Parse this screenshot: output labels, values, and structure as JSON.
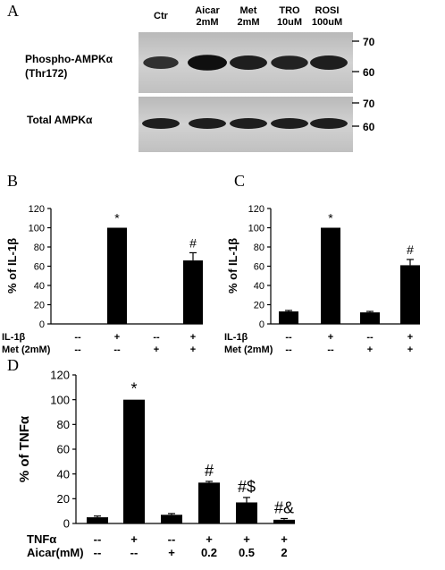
{
  "panel_a": {
    "letter": "A",
    "lanes": [
      "Ctr",
      "Aicar\n2mM",
      "Met\n2mM",
      "TRO\n10uM",
      "ROSI\n100uM"
    ],
    "blots": [
      {
        "label": "Phospho-AMPKα\n(Thr172)",
        "markers": [
          "70",
          "60"
        ],
        "band_intensity": [
          0.55,
          1.0,
          0.8,
          0.75,
          0.8
        ]
      },
      {
        "label": "Total AMPKα",
        "markers": [
          "70",
          "60"
        ],
        "band_intensity": [
          0.8,
          0.8,
          0.8,
          0.8,
          0.8
        ]
      }
    ]
  },
  "chart_data": [
    {
      "panel": "B",
      "type": "bar",
      "ylabel": "% of IL-1β",
      "ylim": [
        0,
        120
      ],
      "yticks": [
        "0",
        "20",
        "40",
        "60",
        "80",
        "100",
        "120"
      ],
      "values": [
        0,
        100,
        0,
        66
      ],
      "errors": [
        0,
        0,
        0,
        8
      ],
      "annotations": [
        "",
        "*",
        "",
        "#"
      ],
      "conditions": [
        {
          "label": "IL-1β",
          "values": [
            "--",
            "+",
            "--",
            "+"
          ]
        },
        {
          "label": "Met (2mM)",
          "values": [
            "--",
            "--",
            "+",
            "+"
          ]
        }
      ]
    },
    {
      "panel": "C",
      "type": "bar",
      "ylabel": "% of IL-1β",
      "ylim": [
        0,
        120
      ],
      "yticks": [
        "0",
        "20",
        "40",
        "60",
        "80",
        "100",
        "120"
      ],
      "values": [
        13,
        100,
        12,
        61
      ],
      "errors": [
        1,
        0,
        1,
        6
      ],
      "annotations": [
        "",
        "*",
        "",
        "#"
      ],
      "conditions": [
        {
          "label": "IL-1β",
          "values": [
            "--",
            "+",
            "--",
            "+"
          ]
        },
        {
          "label": "Met (2mM)",
          "values": [
            "--",
            "--",
            "+",
            "+"
          ]
        }
      ]
    },
    {
      "panel": "D",
      "type": "bar",
      "ylabel": "% of TNFα",
      "ylim": [
        0,
        120
      ],
      "yticks": [
        "0",
        "20",
        "40",
        "60",
        "80",
        "100",
        "120"
      ],
      "values": [
        5,
        100,
        7,
        33,
        17,
        3
      ],
      "errors": [
        1,
        0,
        1,
        1,
        4,
        1
      ],
      "annotations": [
        "",
        "*",
        "",
        "#",
        "#$",
        "#&"
      ],
      "conditions": [
        {
          "label": "TNFα",
          "values": [
            "--",
            "+",
            "--",
            "+",
            "+",
            "+"
          ]
        },
        {
          "label": "Aicar(mM)",
          "values": [
            "--",
            "--",
            "+",
            "0.2",
            "0.5",
            "2"
          ]
        }
      ]
    }
  ],
  "colors": {
    "bar": "#000000",
    "axis": "#000000",
    "blot_bg": "#c8c8c8",
    "band": "#1a1a1a"
  }
}
